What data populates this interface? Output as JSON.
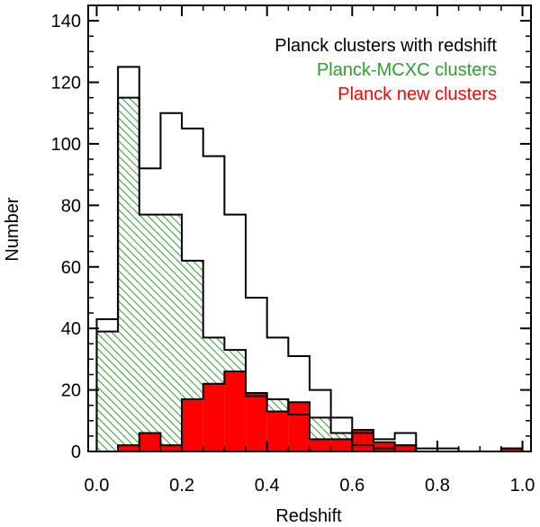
{
  "chart_data": {
    "type": "histogram",
    "xlabel": "Redshift",
    "ylabel": "Number",
    "xlim": [
      -0.02,
      1.02
    ],
    "ylim": [
      0,
      145
    ],
    "xticks": [
      0.0,
      0.2,
      0.4,
      0.6,
      0.8,
      1.0
    ],
    "xtick_labels": [
      "0.0",
      "0.2",
      "0.4",
      "0.6",
      "0.8",
      "1.0"
    ],
    "yticks": [
      0,
      20,
      40,
      60,
      80,
      100,
      120,
      140
    ],
    "ytick_labels": [
      "0",
      "20",
      "40",
      "60",
      "80",
      "100",
      "120",
      "140"
    ],
    "bin_edges": [
      0.0,
      0.05,
      0.1,
      0.15,
      0.2,
      0.25,
      0.3,
      0.35,
      0.4,
      0.45,
      0.5,
      0.55,
      0.6,
      0.65,
      0.7,
      0.75,
      0.8,
      0.85,
      0.9,
      0.95,
      1.0
    ],
    "legend_position": "top-right",
    "series": [
      {
        "name": "Planck clusters with redshift",
        "color": "#000000",
        "style": "step-outline",
        "values": [
          43,
          125,
          92,
          110,
          105,
          96,
          77,
          50,
          37,
          31,
          20,
          11,
          6,
          4,
          6,
          1,
          1,
          0,
          0,
          1
        ]
      },
      {
        "name": "Planck-MCXC clusters",
        "color": "#2ca02c",
        "style": "hatched",
        "values": [
          39,
          115,
          77,
          77,
          62,
          37,
          33,
          18,
          17,
          12,
          11,
          6,
          2,
          1,
          2,
          0,
          0,
          0,
          0,
          0
        ]
      },
      {
        "name": "Planck new clusters",
        "color": "#ff0000",
        "style": "filled",
        "values": [
          0,
          2,
          6,
          2,
          17,
          22,
          26,
          19,
          13,
          16,
          4,
          4,
          7,
          3,
          2,
          0,
          0,
          0,
          0,
          1
        ]
      }
    ]
  }
}
